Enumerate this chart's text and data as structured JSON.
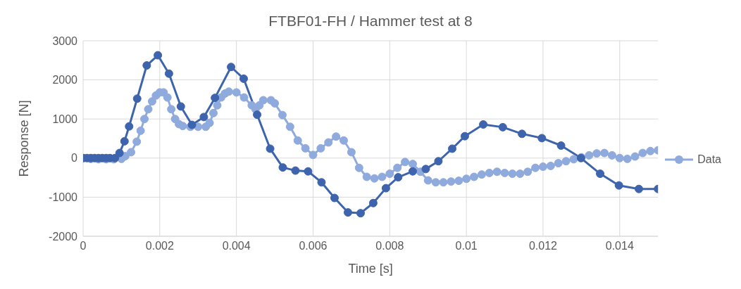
{
  "chart_data": {
    "type": "line",
    "title": "FTBF01-FH / Hammer test at 8",
    "xlabel": "Time [s]",
    "ylabel": "Response [N]",
    "xlim": [
      0,
      0.015
    ],
    "xticks": [
      0,
      0.002,
      0.004,
      0.006,
      0.008,
      0.01,
      0.012,
      0.014
    ],
    "ylim": [
      -2000,
      3000
    ],
    "yticks": [
      -2000,
      -1000,
      0,
      1000,
      2000,
      3000
    ],
    "grid": true,
    "legend": "right",
    "marker": "circle",
    "line_style": "solid",
    "series": [
      {
        "name": "Data",
        "color": "#8faadc",
        "x": [
          0,
          0.0002,
          0.0004,
          0.0006,
          0.0008,
          0.001,
          0.0011,
          0.00125,
          0.0014,
          0.0015,
          0.0016,
          0.0017,
          0.0018,
          0.0019,
          0.002,
          0.0021,
          0.0022,
          0.0023,
          0.0024,
          0.0025,
          0.0026,
          0.0028,
          0.003,
          0.0032,
          0.0033,
          0.0034,
          0.0035,
          0.0036,
          0.0037,
          0.0038,
          0.004,
          0.0042,
          0.0044,
          0.0045,
          0.0046,
          0.0047,
          0.0049,
          0.005,
          0.0052,
          0.0054,
          0.0056,
          0.0058,
          0.006,
          0.0062,
          0.0064,
          0.0066,
          0.0068,
          0.007,
          0.0072,
          0.0074,
          0.0076,
          0.0078,
          0.008,
          0.0082,
          0.0084,
          0.0086,
          0.0088,
          0.009,
          0.0092,
          0.0094,
          0.0096,
          0.0098,
          0.01,
          0.0102,
          0.0104,
          0.0106,
          0.0108,
          0.011,
          0.0112,
          0.0114,
          0.0116,
          0.0118,
          0.012,
          0.0122,
          0.0124,
          0.0126,
          0.0128,
          0.013,
          0.0132,
          0.0134,
          0.0136,
          0.0138,
          0.014,
          0.0142,
          0.0144,
          0.0146,
          0.0148,
          0.015
        ],
        "values": [
          0,
          -20,
          -30,
          -30,
          -30,
          -20,
          50,
          150,
          420,
          700,
          1000,
          1250,
          1450,
          1600,
          1680,
          1680,
          1550,
          1250,
          1000,
          870,
          820,
          800,
          800,
          800,
          900,
          1150,
          1350,
          1550,
          1650,
          1700,
          1680,
          1550,
          1350,
          1250,
          1350,
          1480,
          1480,
          1400,
          1100,
          800,
          450,
          250,
          80,
          250,
          400,
          550,
          450,
          150,
          -250,
          -480,
          -520,
          -480,
          -400,
          -250,
          -100,
          -150,
          -350,
          -570,
          -620,
          -620,
          -600,
          -580,
          -530,
          -480,
          -420,
          -380,
          -350,
          -380,
          -400,
          -400,
          -350,
          -250,
          -220,
          -200,
          -130,
          -80,
          -30,
          20,
          70,
          120,
          130,
          70,
          0,
          -20,
          40,
          130,
          180,
          200
        ]
      },
      {
        "color": "#3d64ad",
        "x": [
          0,
          0.0001,
          0.0002,
          0.0003,
          0.0004,
          0.0005,
          0.0006,
          0.0007,
          0.00083,
          0.00095,
          0.00108,
          0.0012,
          0.00141,
          0.00166,
          0.00195,
          0.00224,
          0.00255,
          0.00284,
          0.00315,
          0.00344,
          0.00386,
          0.00419,
          0.00454,
          0.00488,
          0.00521,
          0.00554,
          0.00587,
          0.00622,
          0.00656,
          0.00691,
          0.00724,
          0.00757,
          0.0079,
          0.00822,
          0.0086,
          0.00894,
          0.00927,
          0.00963,
          0.00996,
          0.01044,
          0.01095,
          0.01145,
          0.01197,
          0.01247,
          0.01299,
          0.01349,
          0.01398,
          0.0145,
          0.015
        ],
        "values": [
          0,
          0,
          0,
          0,
          0,
          0,
          0,
          0,
          0,
          130,
          430,
          810,
          1520,
          2370,
          2630,
          2160,
          1320,
          850,
          1050,
          1540,
          2330,
          2030,
          1110,
          240,
          -240,
          -320,
          -340,
          -620,
          -1020,
          -1390,
          -1410,
          -1150,
          -770,
          -490,
          -340,
          -280,
          -80,
          240,
          560,
          860,
          790,
          620,
          510,
          320,
          0,
          -400,
          -700,
          -790,
          -790
        ]
      }
    ]
  }
}
